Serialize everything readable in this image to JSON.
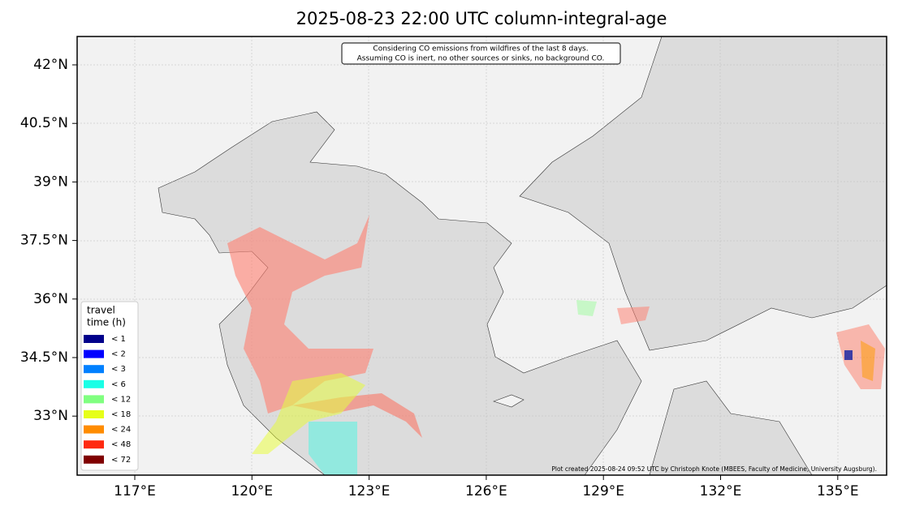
{
  "header": {
    "title": "2025-08-23 22:00 UTC column-integral-age"
  },
  "annotation": [
    "Considering CO emissions from wildfires of the last 8 days.",
    "Assuming CO is inert, no other sources or sinks, no background CO."
  ],
  "credit": "Plot created 2025-08-24 09:52 UTC by Christoph Knote (MBEES, Faculty of Medicine, University Augsburg).",
  "axes": {
    "x_labels": [
      "117°E",
      "120°E",
      "123°E",
      "126°E",
      "129°E",
      "132°E",
      "135°E"
    ],
    "y_labels": [
      "42°N",
      "40.5°N",
      "39°N",
      "37.5°N",
      "36°N",
      "34.5°N",
      "33°N"
    ]
  },
  "legend": {
    "title": [
      "travel",
      "time (h)"
    ],
    "items": [
      {
        "label": "<  1",
        "color": "#00008b"
      },
      {
        "label": "<  2",
        "color": "#0000ff"
      },
      {
        "label": "<  3",
        "color": "#0080ff"
      },
      {
        "label": "<  6",
        "color": "#19ffe6"
      },
      {
        "label": "< 12",
        "color": "#80ff80"
      },
      {
        "label": "< 18",
        "color": "#e6ff19"
      },
      {
        "label": "< 24",
        "color": "#ff8c00"
      },
      {
        "label": "< 48",
        "color": "#ff2a10"
      },
      {
        "label": "< 72",
        "color": "#800000"
      }
    ]
  }
}
